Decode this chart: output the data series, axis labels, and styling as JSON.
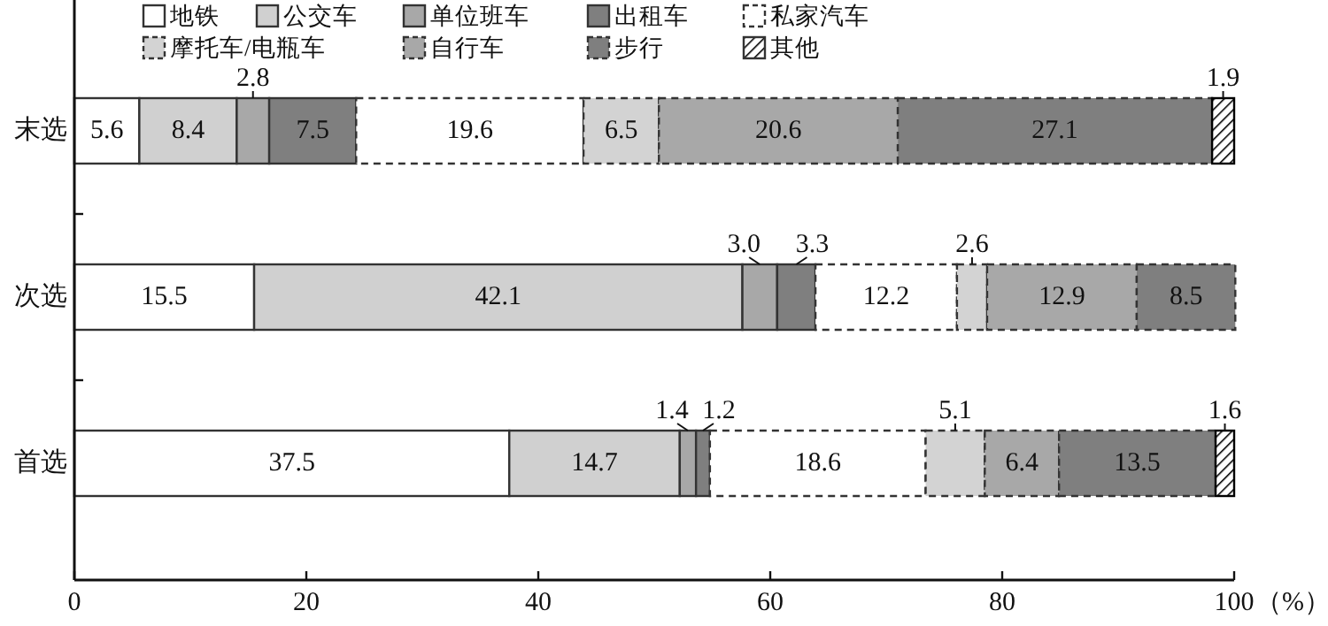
{
  "chart_data": {
    "type": "bar",
    "orientation": "horizontal",
    "stacked": true,
    "xlabel": "（%）",
    "categories": [
      "末选",
      "次选",
      "首选"
    ],
    "series": [
      {
        "name": "地铁",
        "color": "#ffffff",
        "values": [
          5.6,
          15.5,
          37.5
        ]
      },
      {
        "name": "公交车",
        "color": "#d0d0d0",
        "values": [
          8.4,
          42.1,
          14.7
        ]
      },
      {
        "name": "单位班车",
        "color": "#a8a8a8",
        "values": [
          2.8,
          3.0,
          1.4
        ],
        "value_labels": [
          "2.8",
          "3.0",
          "1.4"
        ]
      },
      {
        "name": "出租车",
        "color": "#7f7f7f",
        "values": [
          7.5,
          3.3,
          1.2
        ]
      },
      {
        "name": "私家汽车",
        "color": "#ffffff",
        "line_style": "dashed",
        "values": [
          19.6,
          12.2,
          18.6
        ]
      },
      {
        "name": "摩托车/电瓶车",
        "color": "#d3d3d3",
        "line_style": "dashed",
        "values": [
          6.5,
          2.6,
          5.1
        ]
      },
      {
        "name": "自行车",
        "color": "#a8a8a8",
        "line_style": "dashed",
        "values": [
          20.6,
          12.9,
          6.4
        ]
      },
      {
        "name": "步行",
        "color": "#7f7f7f",
        "line_style": "dashed",
        "values": [
          27.1,
          8.5,
          13.5
        ]
      },
      {
        "name": "其他",
        "color": "#000000",
        "values": [
          1.9,
          null,
          1.6
        ]
      }
    ],
    "xlim": [
      0,
      100
    ],
    "xticks": [
      0,
      20,
      40,
      60,
      80,
      100
    ],
    "data_labels": true,
    "legend": "top",
    "grid": false
  }
}
